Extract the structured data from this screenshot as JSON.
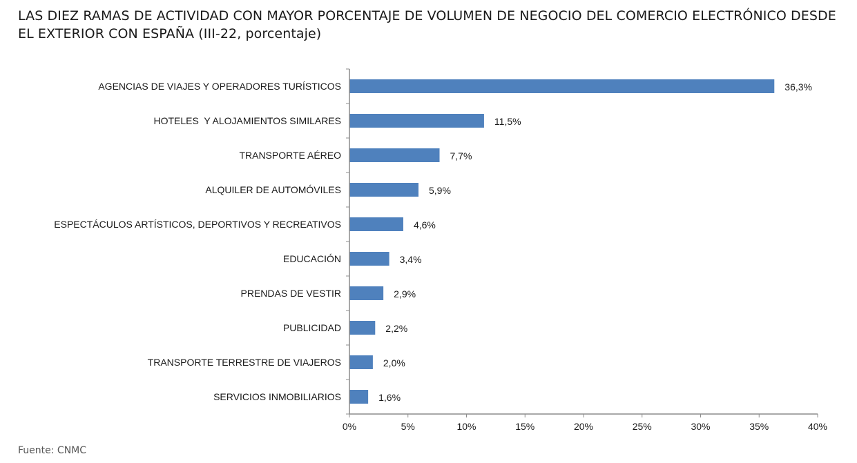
{
  "header": {
    "title": "LAS DIEZ RAMAS DE ACTIVIDAD CON MAYOR PORCENTAJE DE VOLUMEN DE NEGOCIO DEL COMERCIO ELECTRÓNICO DESDE EL EXTERIOR CON ESPAÑA (III-22, porcentaje)"
  },
  "footer": {
    "source": "Fuente: CNMC"
  },
  "chart_data": {
    "type": "bar",
    "orientation": "horizontal",
    "categories": [
      "AGENCIAS DE VIAJES Y OPERADORES TURÍSTICOS",
      "HOTELES  Y ALOJAMIENTOS SIMILARES",
      "TRANSPORTE AÉREO",
      "ALQUILER DE AUTOMÓVILES",
      "ESPECTÁCULOS ARTÍSTICOS, DEPORTIVOS Y RECREATIVOS",
      "EDUCACIÓN",
      "PRENDAS DE VESTIR",
      "PUBLICIDAD",
      "TRANSPORTE TERRESTRE DE VIAJEROS",
      "SERVICIOS INMOBILIARIOS"
    ],
    "values": [
      36.3,
      11.5,
      7.7,
      5.9,
      4.6,
      3.4,
      2.9,
      2.2,
      2.0,
      1.6
    ],
    "value_labels": [
      "36,3%",
      "11,5%",
      "7,7%",
      "5,9%",
      "4,6%",
      "3,4%",
      "2,9%",
      "2,2%",
      "2,0%",
      "1,6%"
    ],
    "xlim": [
      0,
      40
    ],
    "xticks": [
      0,
      5,
      10,
      15,
      20,
      25,
      30,
      35,
      40
    ],
    "xtick_labels": [
      "0%",
      "5%",
      "10%",
      "15%",
      "20%",
      "25%",
      "30%",
      "35%",
      "40%"
    ],
    "xlabel": "",
    "ylabel": "",
    "grid": false,
    "legend": "none",
    "bar_color": "#4f81bd"
  }
}
